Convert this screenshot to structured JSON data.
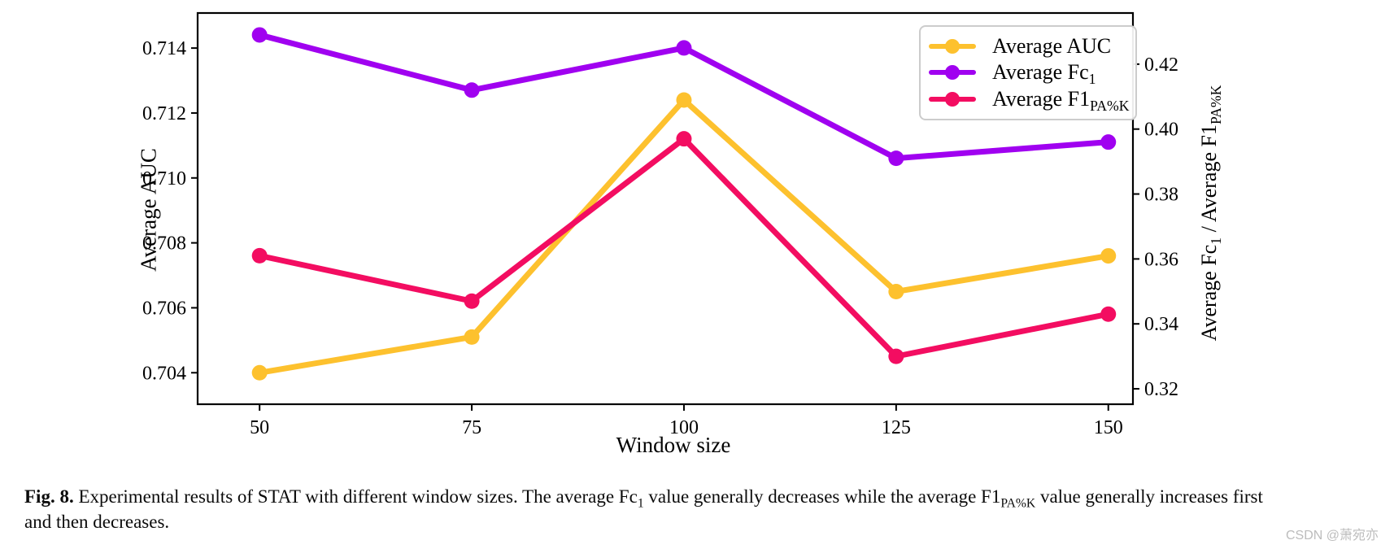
{
  "chart_data": {
    "type": "line",
    "title": "",
    "xlabel": "Window size",
    "ylabel_left": "Average AUC",
    "ylabel_right": {
      "p1": "Average Fc",
      "sub1": "1",
      "p2": " / Average F1",
      "sub2": "PA%K"
    },
    "x": [
      50,
      75,
      100,
      125,
      150
    ],
    "xticks": [
      50,
      75,
      100,
      125,
      150
    ],
    "yticks_left": [
      0.704,
      0.706,
      0.708,
      0.71,
      0.712,
      0.714
    ],
    "yticks_right": [
      0.32,
      0.34,
      0.36,
      0.38,
      0.4,
      0.42
    ],
    "series": [
      {
        "name": "Average AUC",
        "label": "Average AUC",
        "label_sub": "",
        "axis": "left",
        "color": "#FDC12E",
        "marker": "circle",
        "values": [
          0.704,
          0.7051,
          0.7124,
          0.7065,
          0.7076
        ]
      },
      {
        "name": "Average Fc1",
        "label": "Average Fc",
        "label_sub": "1",
        "axis": "right",
        "color": "#A001F0",
        "marker": "circle",
        "values": [
          0.429,
          0.412,
          0.425,
          0.391,
          0.396
        ]
      },
      {
        "name": "Average F1 PA%K",
        "label": "Average F1",
        "label_sub": "PA%K",
        "axis": "right",
        "color": "#F30D61",
        "marker": "circle",
        "values": [
          0.361,
          0.347,
          0.397,
          0.33,
          0.343
        ]
      }
    ],
    "layout": {
      "xlim": [
        42.7,
        152.9
      ],
      "ylim_left": [
        0.70303,
        0.71508
      ],
      "ylim_right": [
        0.31525,
        0.43575
      ],
      "legend_position": "upper right",
      "grid": false
    }
  },
  "caption": {
    "fig_label": "Fig. 8.",
    "seg1": " Experimental results of STAT with different window sizes. The average Fc",
    "sub1": "1",
    "seg2": " value generally decreases while the average F1",
    "sub2": "PA%K",
    "seg3": " value generally increases first",
    "line2": "and then decreases."
  },
  "watermark": {
    "text": "CSDN @萧宛亦"
  }
}
